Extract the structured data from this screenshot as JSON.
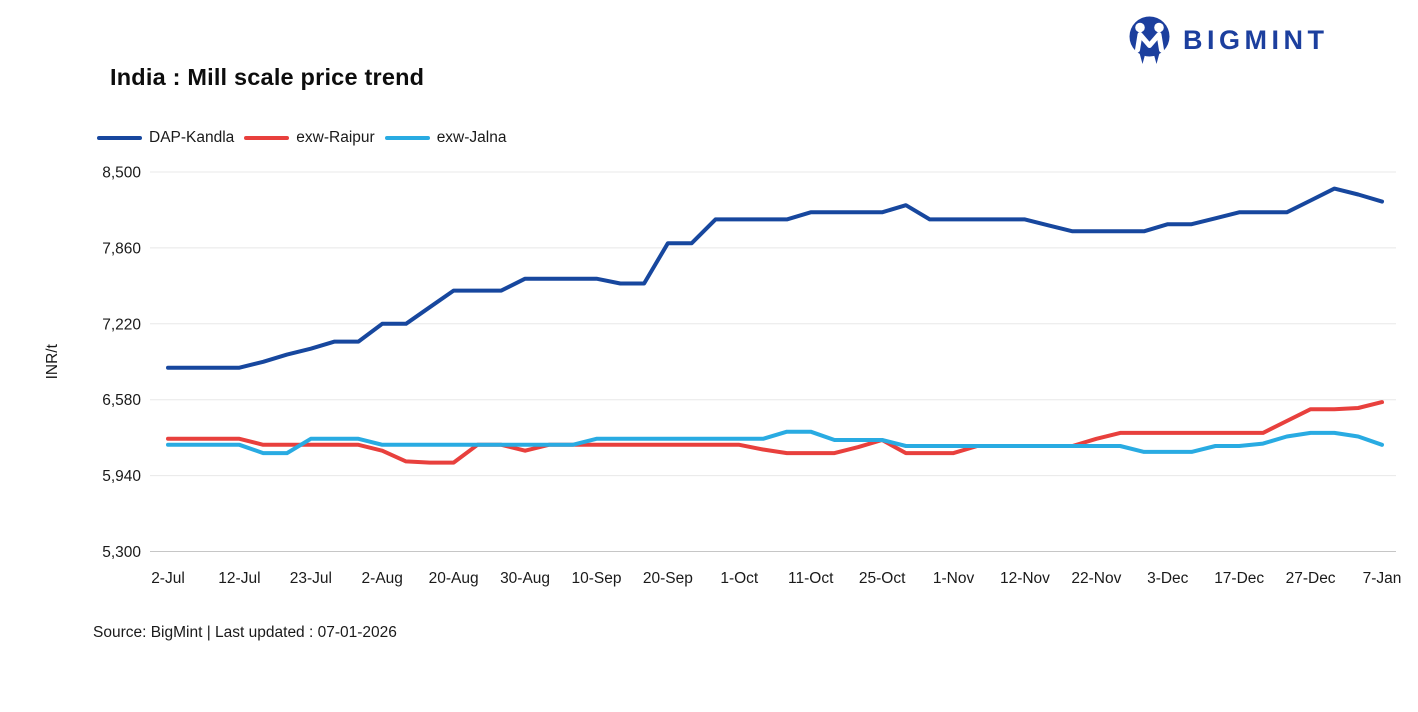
{
  "header": {
    "title": "India : Mill scale price trend",
    "brand": "BIGMINT",
    "brand_color": "#1c3f9e"
  },
  "footer": {
    "source": "Source: BigMint | Last updated : 07-01-2026"
  },
  "chart_data": {
    "type": "line",
    "title": "India : Mill scale price trend",
    "xlabel": "",
    "ylabel": "INR/t",
    "ylim": [
      5300,
      8500
    ],
    "yticks": [
      5300,
      5940,
      6580,
      7220,
      7860,
      8500
    ],
    "grid": "horizontal",
    "legend_position": "top-left",
    "x_labels": [
      "2-Jul",
      "12-Jul",
      "23-Jul",
      "2-Aug",
      "20-Aug",
      "30-Aug",
      "10-Sep",
      "20-Sep",
      "1-Oct",
      "11-Oct",
      "25-Oct",
      "1-Nov",
      "12-Nov",
      "22-Nov",
      "3-Dec",
      "17-Dec",
      "27-Dec",
      "7-Jan"
    ],
    "points_per_label_gap": 3,
    "series": [
      {
        "name": "DAP-Kandla",
        "color": "#17479e",
        "values": [
          6850,
          6850,
          6850,
          6850,
          6900,
          6960,
          7010,
          7070,
          7070,
          7220,
          7220,
          7360,
          7500,
          7500,
          7500,
          7600,
          7600,
          7600,
          7600,
          7560,
          7560,
          7900,
          7900,
          8100,
          8100,
          8100,
          8100,
          8160,
          8160,
          8160,
          8160,
          8220,
          8100,
          8100,
          8100,
          8100,
          8100,
          8050,
          8000,
          8000,
          8000,
          8000,
          8060,
          8060,
          8110,
          8160,
          8160,
          8160,
          8260,
          8360,
          8310,
          8250
        ]
      },
      {
        "name": "exw-Raipur",
        "color": "#e8403d",
        "values": [
          6250,
          6250,
          6250,
          6250,
          6200,
          6200,
          6200,
          6200,
          6200,
          6150,
          6060,
          6050,
          6050,
          6200,
          6200,
          6150,
          6200,
          6200,
          6200,
          6200,
          6200,
          6200,
          6200,
          6200,
          6200,
          6160,
          6130,
          6130,
          6130,
          6180,
          6240,
          6130,
          6130,
          6130,
          6190,
          6190,
          6190,
          6190,
          6190,
          6250,
          6300,
          6300,
          6300,
          6300,
          6300,
          6300,
          6300,
          6400,
          6500,
          6500,
          6510,
          6560
        ]
      },
      {
        "name": "exw-Jalna",
        "color": "#29abe2",
        "values": [
          6200,
          6200,
          6200,
          6200,
          6130,
          6130,
          6250,
          6250,
          6250,
          6200,
          6200,
          6200,
          6200,
          6200,
          6200,
          6200,
          6200,
          6200,
          6250,
          6250,
          6250,
          6250,
          6250,
          6250,
          6250,
          6250,
          6310,
          6310,
          6240,
          6240,
          6240,
          6190,
          6190,
          6190,
          6190,
          6190,
          6190,
          6190,
          6190,
          6190,
          6190,
          6140,
          6140,
          6140,
          6190,
          6190,
          6210,
          6270,
          6300,
          6300,
          6270,
          6200
        ]
      }
    ]
  }
}
